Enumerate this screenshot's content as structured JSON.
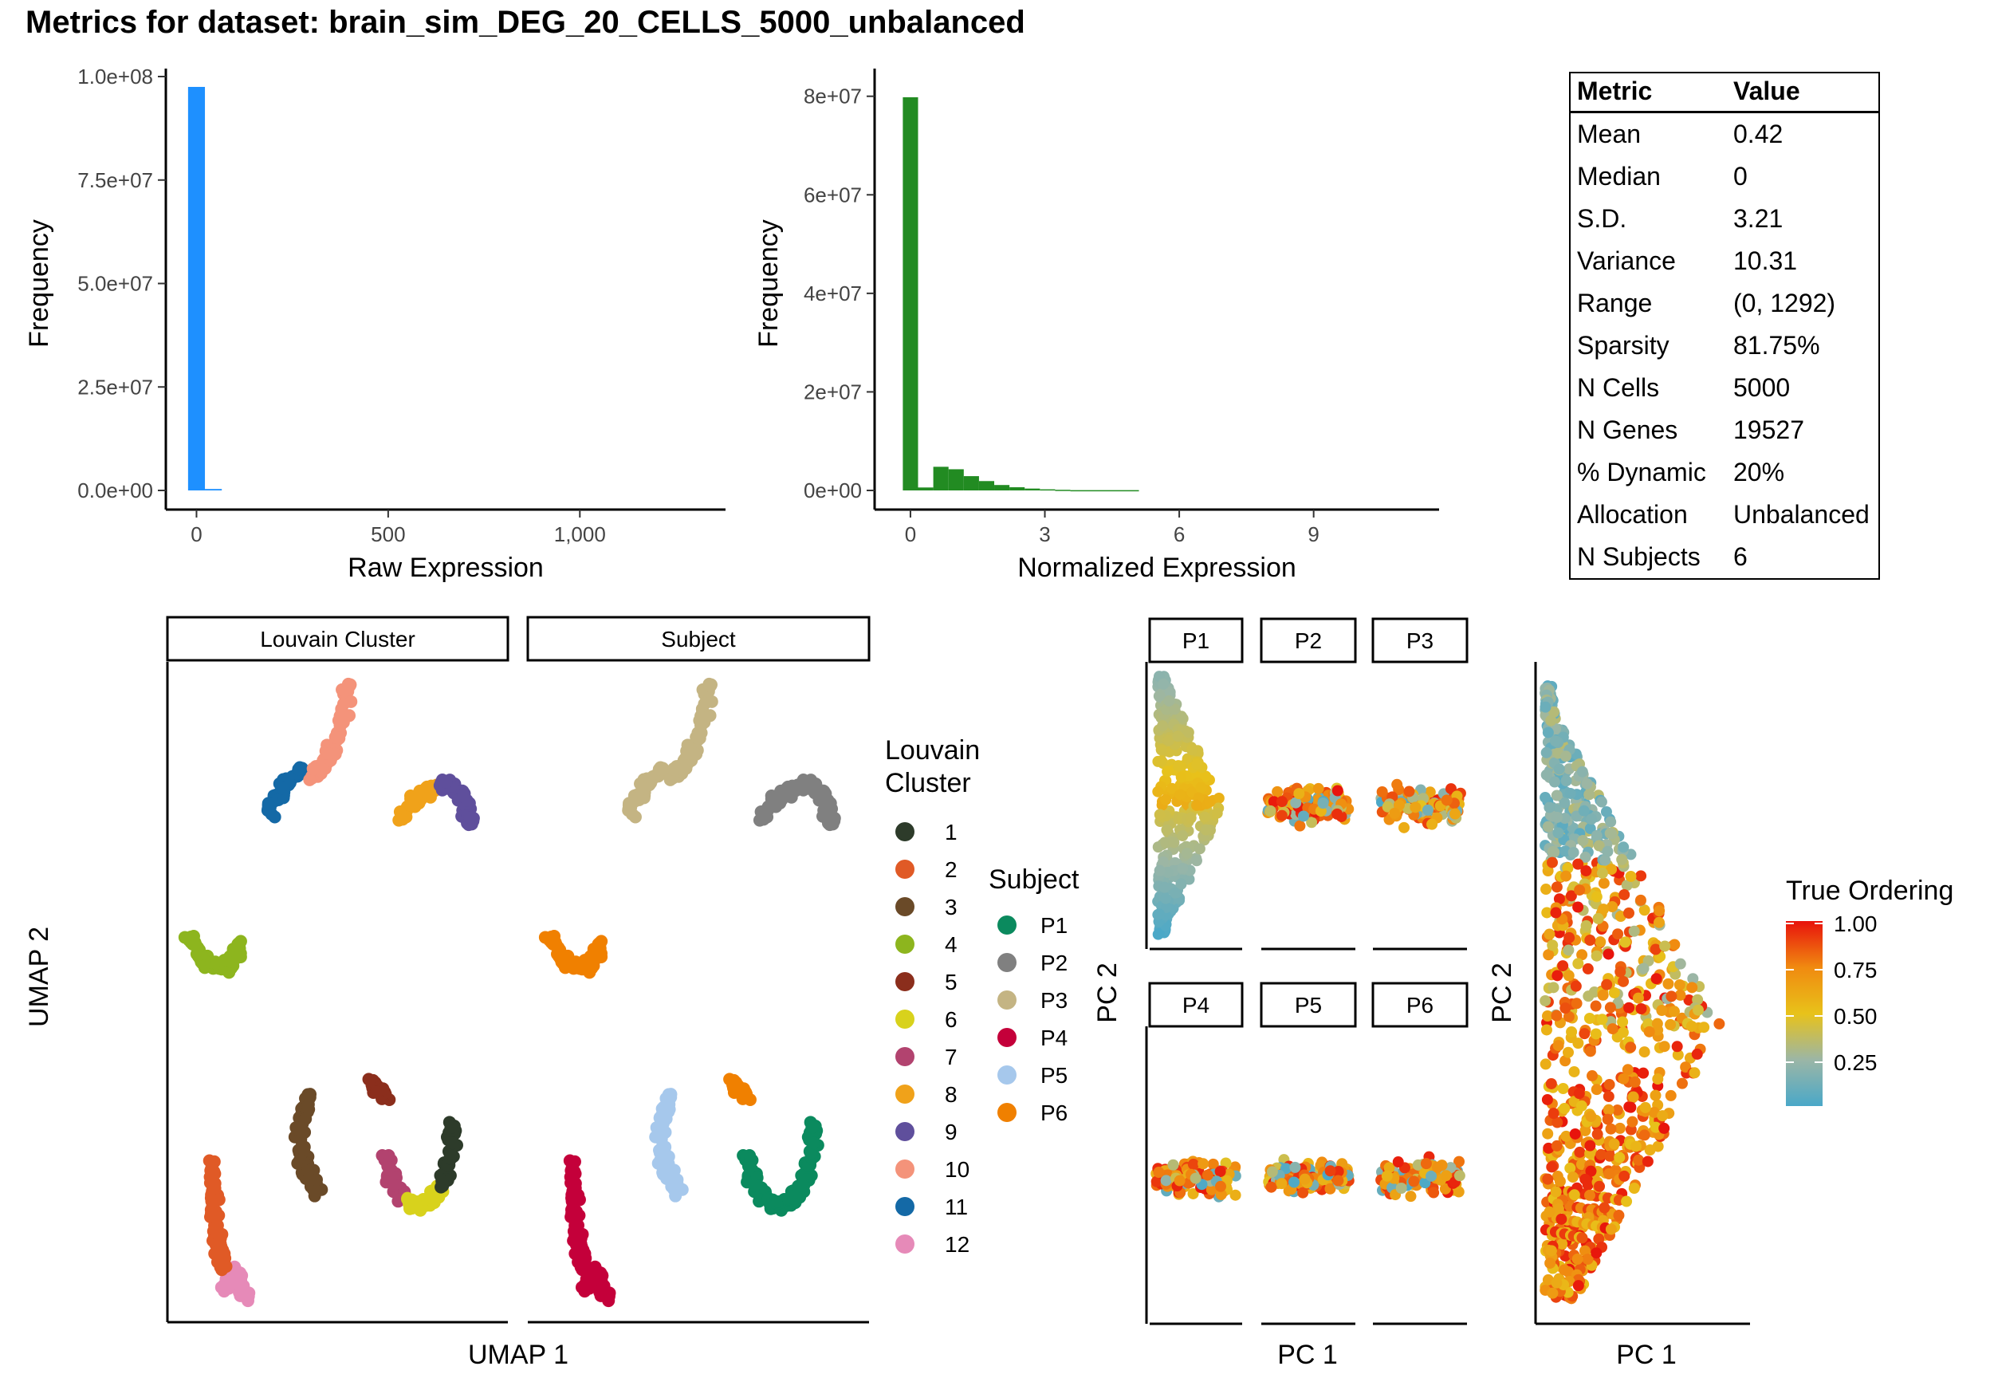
{
  "title": "Metrics for dataset: brain_sim_DEG_20_CELLS_5000_unbalanced",
  "metrics_table": {
    "headers": [
      "Metric",
      "Value"
    ],
    "rows": [
      [
        "Mean",
        "0.42"
      ],
      [
        "Median",
        "0"
      ],
      [
        "S.D.",
        "3.21"
      ],
      [
        "Variance",
        "10.31"
      ],
      [
        "Range",
        "(0, 1292)"
      ],
      [
        "Sparsity",
        "81.75%"
      ],
      [
        "N Cells",
        "5000"
      ],
      [
        "N Genes",
        "19527"
      ],
      [
        "% Dynamic",
        "20%"
      ],
      [
        "Allocation",
        "Unbalanced"
      ],
      [
        "N Subjects",
        "6"
      ]
    ]
  },
  "chart_data": [
    {
      "type": "bar",
      "title": "",
      "xlabel": "Raw Expression",
      "ylabel": "Frequency",
      "color": "#1e90ff",
      "xlim": [
        -80,
        1380
      ],
      "ylim": [
        0,
        100000000
      ],
      "xticks": [
        0,
        500,
        1000
      ],
      "xtick_labels": [
        "0",
        "500",
        "1,000"
      ],
      "yticks": [
        0,
        25000000,
        50000000,
        75000000,
        100000000
      ],
      "ytick_labels": [
        "0.0e+00",
        "2.5e+07",
        "5.0e+07",
        "7.5e+07",
        "1.0e+08"
      ],
      "bins": [
        {
          "x0": -22,
          "x1": 22,
          "value": 97500000
        },
        {
          "x0": 22,
          "x1": 66,
          "value": 350000
        }
      ]
    },
    {
      "type": "bar",
      "title": "",
      "xlabel": "Normalized Expression",
      "ylabel": "Frequency",
      "color": "#228b22",
      "xlim": [
        -0.8,
        11.8
      ],
      "ylim": [
        0,
        84000000
      ],
      "xticks": [
        0,
        3,
        6,
        9
      ],
      "xtick_labels": [
        "0",
        "3",
        "6",
        "9"
      ],
      "yticks": [
        0,
        20000000,
        40000000,
        60000000,
        80000000
      ],
      "ytick_labels": [
        "0e+00",
        "2e+07",
        "4e+07",
        "6e+07",
        "8e+07"
      ],
      "bins": [
        {
          "x0": -0.17,
          "x1": 0.17,
          "value": 79800000
        },
        {
          "x0": 0.17,
          "x1": 0.51,
          "value": 600000
        },
        {
          "x0": 0.51,
          "x1": 0.85,
          "value": 4800000
        },
        {
          "x0": 0.85,
          "x1": 1.19,
          "value": 4300000
        },
        {
          "x0": 1.19,
          "x1": 1.53,
          "value": 2900000
        },
        {
          "x0": 1.53,
          "x1": 1.87,
          "value": 1900000
        },
        {
          "x0": 1.87,
          "x1": 2.21,
          "value": 1100000
        },
        {
          "x0": 2.21,
          "x1": 2.55,
          "value": 650000
        },
        {
          "x0": 2.55,
          "x1": 2.89,
          "value": 380000
        },
        {
          "x0": 2.89,
          "x1": 3.23,
          "value": 230000
        },
        {
          "x0": 3.23,
          "x1": 3.57,
          "value": 130000
        },
        {
          "x0": 3.57,
          "x1": 5.1,
          "value": 60000
        }
      ]
    },
    {
      "type": "scatter",
      "title": "",
      "facets": [
        "Louvain Cluster",
        "Subject"
      ],
      "xlabel": "UMAP 1",
      "ylabel": "UMAP 2",
      "legends": [
        {
          "title": "Louvain Cluster",
          "entries": [
            "1",
            "2",
            "3",
            "4",
            "5",
            "6",
            "7",
            "8",
            "9",
            "10",
            "11",
            "12"
          ],
          "colors": [
            "#2d3b2a",
            "#e05a26",
            "#6a4a28",
            "#8db51e",
            "#8b2e1c",
            "#d8d21c",
            "#b2436f",
            "#f0a21a",
            "#5f4f9c",
            "#f4937a",
            "#1469a6",
            "#e68ab8"
          ]
        },
        {
          "title": "Subject",
          "entries": [
            "P1",
            "P2",
            "P3",
            "P4",
            "P5",
            "P6"
          ],
          "colors": [
            "#0b8a5e",
            "#808080",
            "#c4b483",
            "#c4003a",
            "#a6c8ec",
            "#f08000"
          ]
        }
      ],
      "clusters": [
        {
          "louvain": "12",
          "subject": "P4",
          "path": [
            [
              -8.2,
              -8.6
            ],
            [
              -7.9,
              -7.9
            ],
            [
              -7.4,
              -8.9
            ]
          ]
        },
        {
          "louvain": "2",
          "subject": "P4",
          "path": [
            [
              -8.7,
              -4.4
            ],
            [
              -8.6,
              -5.8
            ],
            [
              -8.5,
              -7.0
            ],
            [
              -8.2,
              -7.9
            ]
          ]
        },
        {
          "louvain": "3",
          "subject": "P5",
          "path": [
            [
              -5.3,
              -2.4
            ],
            [
              -5.6,
              -3.5
            ],
            [
              -5.5,
              -4.6
            ],
            [
              -5.0,
              -5.5
            ]
          ]
        },
        {
          "louvain": "7",
          "subject": "P1",
          "path": [
            [
              -2.6,
              -4.4
            ],
            [
              -2.4,
              -5.2
            ],
            [
              -2.0,
              -5.7
            ]
          ]
        },
        {
          "louvain": "6",
          "subject": "P1",
          "path": [
            [
              -1.9,
              -5.8
            ],
            [
              -1.3,
              -5.9
            ],
            [
              -0.7,
              -5.4
            ]
          ]
        },
        {
          "louvain": "1",
          "subject": "P1",
          "path": [
            [
              -0.7,
              -5.4
            ],
            [
              -0.4,
              -4.5
            ],
            [
              -0.3,
              -3.4
            ]
          ]
        },
        {
          "louvain": "5",
          "subject": "P6",
          "path": [
            [
              -3.1,
              -2.0
            ],
            [
              -2.9,
              -2.3
            ],
            [
              -2.7,
              -2.4
            ]
          ]
        },
        {
          "louvain": "4",
          "subject": "P6",
          "path": [
            [
              -9.4,
              2.5
            ],
            [
              -8.9,
              1.7
            ],
            [
              -8.1,
              1.6
            ],
            [
              -7.6,
              2.4
            ]
          ]
        },
        {
          "louvain": "11",
          "subject": "P3",
          "path": [
            [
              -6.7,
              6.4
            ],
            [
              -6.2,
              7.3
            ],
            [
              -5.6,
              7.8
            ]
          ]
        },
        {
          "louvain": "10",
          "subject": "P3",
          "path": [
            [
              -5.2,
              7.6
            ],
            [
              -4.6,
              8.2
            ],
            [
              -4.2,
              9.0
            ],
            [
              -3.9,
              10.5
            ]
          ]
        },
        {
          "louvain": "8",
          "subject": "P2",
          "path": [
            [
              -2.1,
              6.2
            ],
            [
              -1.6,
              6.9
            ],
            [
              -0.9,
              7.3
            ]
          ]
        },
        {
          "louvain": "9",
          "subject": "P2",
          "path": [
            [
              -0.7,
              7.4
            ],
            [
              0.0,
              7.1
            ],
            [
              0.3,
              6.1
            ]
          ]
        }
      ]
    },
    {
      "type": "scatter",
      "title": "",
      "facets": [
        "P1",
        "P2",
        "P3",
        "P4",
        "P5",
        "P6"
      ],
      "xlabel": "PC 1",
      "ylabel": "PC 2",
      "color_scale": {
        "title": "True Ordering",
        "ticks": [
          "1.00",
          "0.75",
          "0.50",
          "0.25"
        ],
        "stops": [
          "#e8120c",
          "#f08a10",
          "#e8c21a",
          "#9bb6a6",
          "#4aa8c8"
        ]
      }
    },
    {
      "type": "scatter",
      "title": "",
      "xlabel": "PC 1",
      "ylabel": "PC 2",
      "color_scale": {
        "title": "True Ordering",
        "ticks": [
          "1.00",
          "0.75",
          "0.50",
          "0.25"
        ]
      }
    }
  ]
}
